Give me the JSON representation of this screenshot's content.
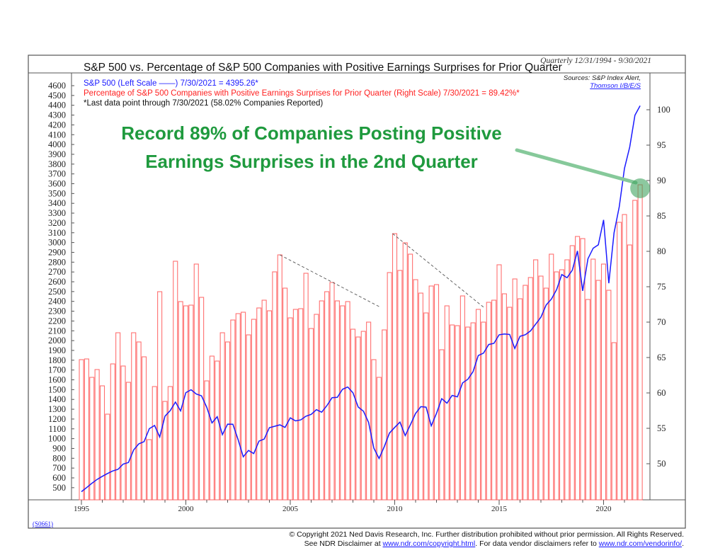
{
  "header": {
    "period": "Quarterly 12/31/1994 - 9/30/2021",
    "title": "S&P 500 vs. Percentage of S&P 500 Companies with Positive Earnings Surprises for Prior Quarter"
  },
  "legend": {
    "sp500": "S&P 500 (Left Scale ——) 7/30/2021 = 4395.26*",
    "pct": "Percentage of S&P 500 Companies with Positive Earnings Surprises for Prior Quarter (Right Scale)  7/30/2021 = 89.42%*",
    "note": "*Last data point through 7/30/2021 (58.02% Companies Reported)",
    "sources_label": "Sources: S&P Index Alert,",
    "sources_link": "Thomson I/B/E/S"
  },
  "annotation": {
    "line1": "Record 89% of Companies Posting Positive",
    "line2": "Earnings Surprises in the 2nd Quarter",
    "color": "#1f9a3e"
  },
  "footer": {
    "code": "(S0661)",
    "copyright": "© Copyright 2021 Ned Davis Research, Inc.  Further distribution prohibited without prior permission.  All Rights Reserved.",
    "disclaimer_pre": "See NDR Disclaimer at ",
    "disclaimer_link1": "www.ndr.com/copyright.html",
    "disclaimer_mid": ". For data vendor disclaimers refer to ",
    "disclaimer_link2": "www.ndr.com/vendorinfo/",
    "disclaimer_post": "."
  },
  "chart_data": {
    "type": "bar+line",
    "frequency": "quarterly",
    "x_start": "1994-12-31",
    "x_end": "2021-09-30",
    "x_tick_labels": [
      "1995",
      "2000",
      "2005",
      "2010",
      "2015",
      "2020"
    ],
    "left_axis": {
      "min": 500,
      "max": 4600,
      "step": 100
    },
    "right_axis": {
      "min": 50,
      "max": 100,
      "step": 5
    },
    "colors": {
      "bars": "#ff7070",
      "line": "#1a1aff",
      "trend": "#555555",
      "highlight": "#3fa35f"
    },
    "series": [
      {
        "name": "Percentage of S&P 500 Companies with Positive Earnings Surprises for Prior Quarter",
        "type": "bar",
        "axis": "right",
        "values": [
          64.7,
          64.8,
          62.2,
          63.3,
          61.0,
          57.0,
          64.1,
          68.5,
          63.8,
          61.5,
          68.5,
          67.2,
          65.1,
          53.4,
          60.9,
          74.3,
          58.8,
          60.9,
          78.6,
          72.9,
          72.3,
          72.4,
          78.2,
          73.5,
          61.7,
          65.2,
          64.5,
          68.5,
          67.2,
          70.3,
          71.2,
          71.4,
          68.2,
          70.4,
          72.0,
          73.1,
          71.6,
          77.1,
          79.5,
          74.8,
          70.6,
          71.8,
          71.9,
          76.9,
          69.1,
          71.1,
          73.0,
          74.3,
          75.6,
          73.0,
          72.3,
          72.9,
          69.0,
          67.9,
          68.7,
          70.0,
          64.7,
          62.2,
          68.9,
          77.0,
          82.5,
          77.3,
          81.2,
          79.6,
          76.0,
          74.1,
          71.3,
          75.1,
          75.3,
          66.1,
          72.3,
          69.6,
          69.5,
          73.7,
          69.3,
          69.9,
          71.8,
          70.0,
          72.8,
          73.1,
          78.1,
          74.0,
          72.1,
          76.1,
          73.3,
          75.2,
          76.3,
          78.8,
          76.5,
          74.8,
          79.6,
          77.1,
          77.4,
          78.8,
          80.8,
          82.1,
          81.8,
          73.2,
          78.9,
          75.9,
          78.2,
          74.5,
          67.1,
          84.1,
          85.2,
          80.9,
          87.2,
          89.4
        ]
      },
      {
        "name": "S&P 500",
        "type": "line",
        "axis": "left",
        "values": [
          459,
          501,
          545,
          584,
          616,
          645,
          671,
          687,
          741,
          757,
          885,
          947,
          970,
          1102,
          1134,
          1017,
          1229,
          1286,
          1373,
          1283,
          1469,
          1499,
          1455,
          1437,
          1320,
          1160,
          1224,
          1041,
          1148,
          1147,
          990,
          815,
          880,
          848,
          975,
          996,
          1112,
          1126,
          1141,
          1115,
          1212,
          1181,
          1191,
          1229,
          1248,
          1295,
          1270,
          1336,
          1418,
          1421,
          1503,
          1527,
          1468,
          1323,
          1280,
          1166,
          903,
          798,
          919,
          1057,
          1115,
          1169,
          1031,
          1141,
          1258,
          1326,
          1321,
          1131,
          1258,
          1408,
          1362,
          1441,
          1426,
          1569,
          1606,
          1682,
          1848,
          1872,
          1960,
          1972,
          2059,
          2068,
          2063,
          1920,
          2044,
          2060,
          2099,
          2168,
          2239,
          2363,
          2423,
          2519,
          2674,
          2641,
          2718,
          2914,
          2507,
          2834,
          2942,
          2977,
          3231,
          2585,
          3100,
          3363,
          3756,
          3973,
          4298,
          4395
        ]
      }
    ],
    "trend_lines": [
      {
        "from": [
          2004.5,
          79.5
        ],
        "to": [
          2009.25,
          72.2
        ]
      },
      {
        "from": [
          2009.9,
          82.5
        ],
        "to": [
          2014.3,
          72.0
        ]
      }
    ],
    "highlight": {
      "year": 2021.75,
      "value": 89.4
    }
  }
}
